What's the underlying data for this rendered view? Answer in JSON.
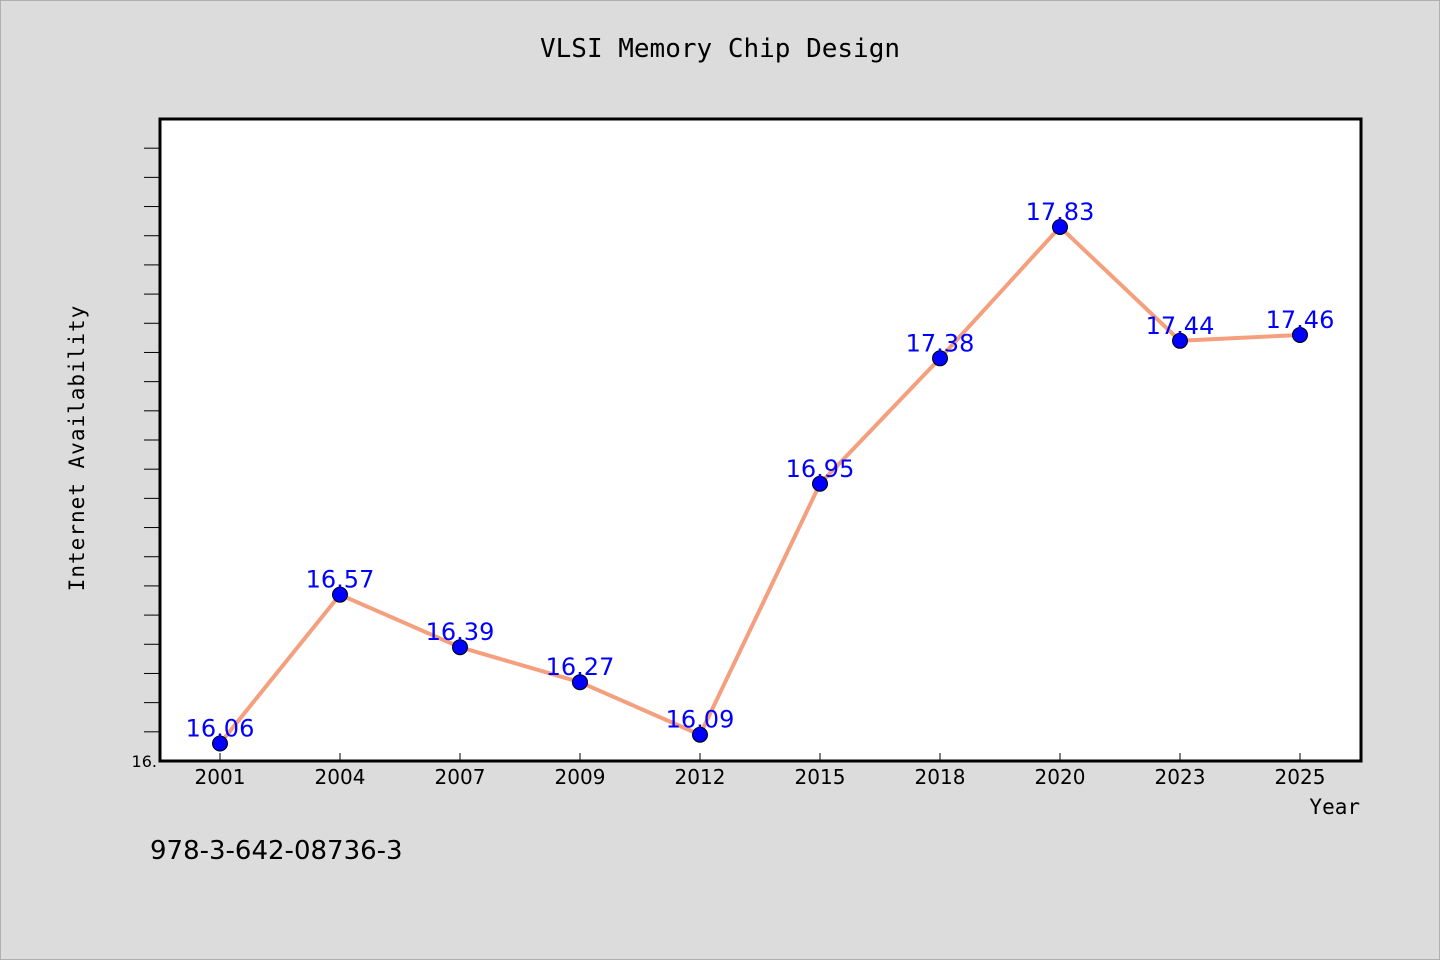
{
  "title": "VLSI Memory Chip Design",
  "footer_code": "978-3-642-08736-3",
  "colors": {
    "background": "#dcdcdc",
    "line": "#f4a07e",
    "marker": "#0000ff",
    "label": "#0000ff"
  },
  "chart_data": {
    "type": "line",
    "title": "VLSI Memory Chip Design",
    "xlabel": "Year",
    "ylabel": "Internet Availability",
    "categories": [
      "2001",
      "2004",
      "2007",
      "2009",
      "2012",
      "2015",
      "2018",
      "2020",
      "2023",
      "2025"
    ],
    "series": [
      {
        "values": [
          16.06,
          16.57,
          16.39,
          16.27,
          16.09,
          16.95,
          17.38,
          17.83,
          17.44,
          17.46
        ],
        "labels": [
          "16.06",
          "16.57",
          "16.39",
          "16.27",
          "16.09",
          "16.95",
          "17.38",
          "17.83",
          "17.44",
          "17.46"
        ]
      }
    ],
    "ylim": [
      16.0,
      18.2
    ],
    "y_min_tick_label": "16.",
    "grid": false,
    "legend": "none"
  }
}
